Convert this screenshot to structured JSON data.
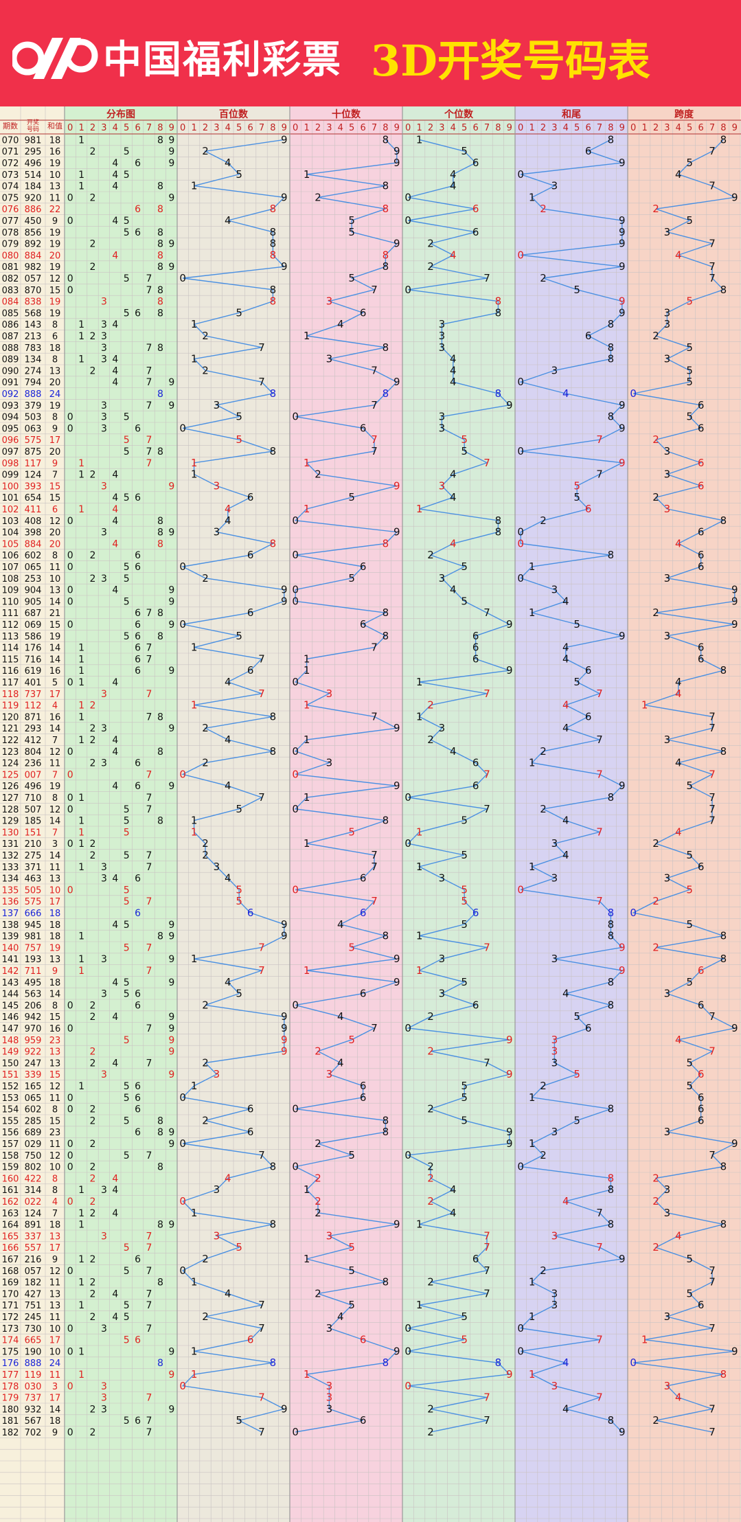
{
  "header": {
    "brand": "中国福利彩票",
    "subtitle": "3D开奖号码表"
  },
  "chart_data": {
    "type": "table",
    "columns": {
      "period": "期数",
      "number": "开奖号码",
      "sum": "和值",
      "distribution": "分布图",
      "hundreds": "百位数",
      "tens": "十位数",
      "units": "个位数",
      "sum_tail": "和尾",
      "span": "跨度"
    },
    "digits": [
      "0",
      "1",
      "2",
      "3",
      "4",
      "5",
      "6",
      "7",
      "8",
      "9"
    ],
    "rows": [
      {
        "p": "070",
        "n": "981"
      },
      {
        "p": "071",
        "n": "295"
      },
      {
        "p": "072",
        "n": "496"
      },
      {
        "p": "073",
        "n": "514"
      },
      {
        "p": "074",
        "n": "184"
      },
      {
        "p": "075",
        "n": "920"
      },
      {
        "p": "076",
        "n": "886"
      },
      {
        "p": "077",
        "n": "450"
      },
      {
        "p": "078",
        "n": "856"
      },
      {
        "p": "079",
        "n": "892"
      },
      {
        "p": "080",
        "n": "884"
      },
      {
        "p": "081",
        "n": "982"
      },
      {
        "p": "082",
        "n": "057"
      },
      {
        "p": "083",
        "n": "870"
      },
      {
        "p": "084",
        "n": "838"
      },
      {
        "p": "085",
        "n": "568"
      },
      {
        "p": "086",
        "n": "143"
      },
      {
        "p": "087",
        "n": "213"
      },
      {
        "p": "088",
        "n": "783"
      },
      {
        "p": "089",
        "n": "134"
      },
      {
        "p": "090",
        "n": "274"
      },
      {
        "p": "091",
        "n": "794"
      },
      {
        "p": "092",
        "n": "888"
      },
      {
        "p": "093",
        "n": "379"
      },
      {
        "p": "094",
        "n": "503"
      },
      {
        "p": "095",
        "n": "063"
      },
      {
        "p": "096",
        "n": "575"
      },
      {
        "p": "097",
        "n": "875"
      },
      {
        "p": "098",
        "n": "117"
      },
      {
        "p": "099",
        "n": "124"
      },
      {
        "p": "100",
        "n": "393"
      },
      {
        "p": "101",
        "n": "654"
      },
      {
        "p": "102",
        "n": "411"
      },
      {
        "p": "103",
        "n": "408"
      },
      {
        "p": "104",
        "n": "398"
      },
      {
        "p": "105",
        "n": "884"
      },
      {
        "p": "106",
        "n": "602"
      },
      {
        "p": "107",
        "n": "065"
      },
      {
        "p": "108",
        "n": "253"
      },
      {
        "p": "109",
        "n": "904"
      },
      {
        "p": "110",
        "n": "905"
      },
      {
        "p": "111",
        "n": "687"
      },
      {
        "p": "112",
        "n": "069"
      },
      {
        "p": "113",
        "n": "586"
      },
      {
        "p": "114",
        "n": "176"
      },
      {
        "p": "115",
        "n": "716"
      },
      {
        "p": "116",
        "n": "619"
      },
      {
        "p": "117",
        "n": "401"
      },
      {
        "p": "118",
        "n": "737"
      },
      {
        "p": "119",
        "n": "112"
      },
      {
        "p": "120",
        "n": "871"
      },
      {
        "p": "121",
        "n": "293"
      },
      {
        "p": "122",
        "n": "412"
      },
      {
        "p": "123",
        "n": "804"
      },
      {
        "p": "124",
        "n": "236"
      },
      {
        "p": "125",
        "n": "007"
      },
      {
        "p": "126",
        "n": "496"
      },
      {
        "p": "127",
        "n": "710"
      },
      {
        "p": "128",
        "n": "507"
      },
      {
        "p": "129",
        "n": "185"
      },
      {
        "p": "130",
        "n": "151"
      },
      {
        "p": "131",
        "n": "210"
      },
      {
        "p": "132",
        "n": "275"
      },
      {
        "p": "133",
        "n": "371"
      },
      {
        "p": "134",
        "n": "463"
      },
      {
        "p": "135",
        "n": "505"
      },
      {
        "p": "136",
        "n": "575"
      },
      {
        "p": "137",
        "n": "666"
      },
      {
        "p": "138",
        "n": "945"
      },
      {
        "p": "139",
        "n": "981"
      },
      {
        "p": "140",
        "n": "757"
      },
      {
        "p": "141",
        "n": "193"
      },
      {
        "p": "142",
        "n": "711"
      },
      {
        "p": "143",
        "n": "495"
      },
      {
        "p": "144",
        "n": "563"
      },
      {
        "p": "145",
        "n": "206"
      },
      {
        "p": "146",
        "n": "942"
      },
      {
        "p": "147",
        "n": "970"
      },
      {
        "p": "148",
        "n": "959"
      },
      {
        "p": "149",
        "n": "922"
      },
      {
        "p": "150",
        "n": "247"
      },
      {
        "p": "151",
        "n": "339"
      },
      {
        "p": "152",
        "n": "165"
      },
      {
        "p": "153",
        "n": "065"
      },
      {
        "p": "154",
        "n": "602"
      },
      {
        "p": "155",
        "n": "285"
      },
      {
        "p": "156",
        "n": "689"
      },
      {
        "p": "157",
        "n": "029"
      },
      {
        "p": "158",
        "n": "750"
      },
      {
        "p": "159",
        "n": "802"
      },
      {
        "p": "160",
        "n": "422"
      },
      {
        "p": "161",
        "n": "314"
      },
      {
        "p": "162",
        "n": "022"
      },
      {
        "p": "163",
        "n": "124"
      },
      {
        "p": "164",
        "n": "891"
      },
      {
        "p": "165",
        "n": "337"
      },
      {
        "p": "166",
        "n": "557"
      },
      {
        "p": "167",
        "n": "216"
      },
      {
        "p": "168",
        "n": "057"
      },
      {
        "p": "169",
        "n": "182"
      },
      {
        "p": "170",
        "n": "427"
      },
      {
        "p": "171",
        "n": "751"
      },
      {
        "p": "172",
        "n": "245"
      },
      {
        "p": "173",
        "n": "730"
      },
      {
        "p": "174",
        "n": "665"
      },
      {
        "p": "175",
        "n": "190"
      },
      {
        "p": "176",
        "n": "888"
      },
      {
        "p": "177",
        "n": "119"
      },
      {
        "p": "178",
        "n": "030"
      },
      {
        "p": "179",
        "n": "737"
      },
      {
        "p": "180",
        "n": "932"
      },
      {
        "p": "181",
        "n": "567"
      },
      {
        "p": "182",
        "n": "702"
      }
    ],
    "empty_rows": 8
  },
  "colors": {
    "header_bg": "#f0304a",
    "subtitle": "#ffe200",
    "dist_bg": "#d4f0d0",
    "hundreds_bg": "#ece8dc",
    "tens_bg": "#f7d2de",
    "units_bg": "#d6ecd8",
    "tail_bg": "#d7d3f2",
    "span_bg": "#f7d4c6",
    "line": "#4a90e2",
    "repeat_pair": "#e02020",
    "triple": "#1a24d8",
    "normal": "#111111"
  }
}
